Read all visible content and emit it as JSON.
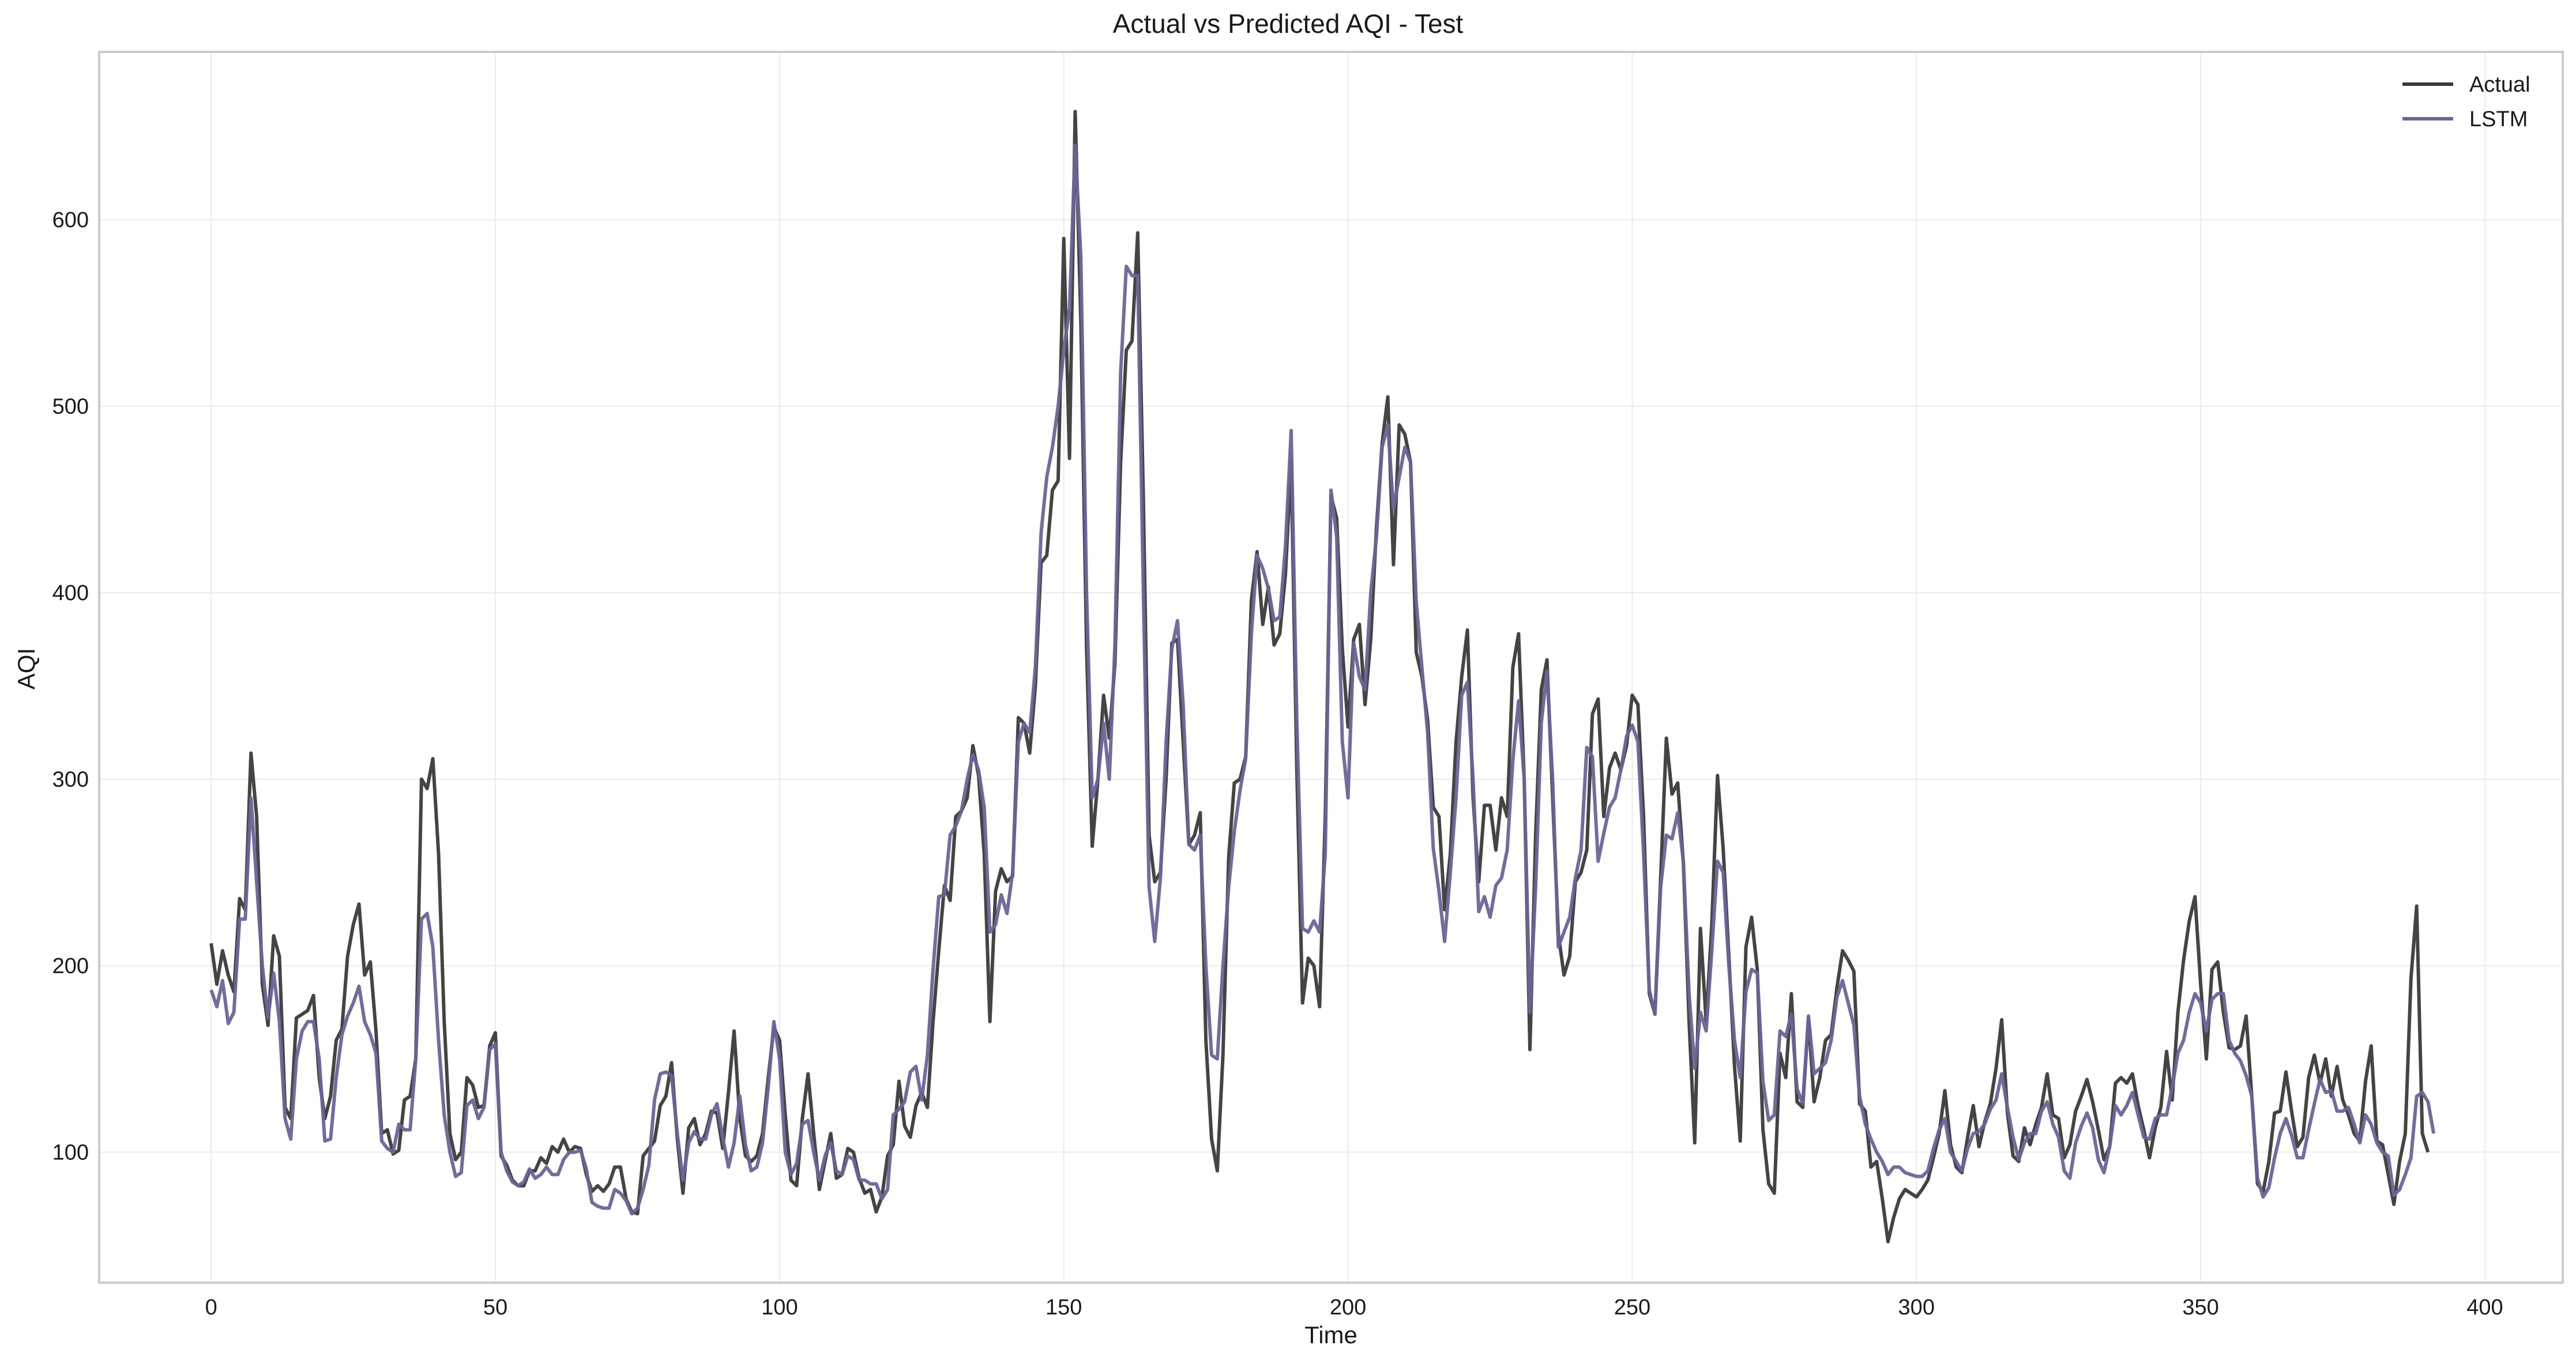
{
  "chart_data": {
    "type": "line",
    "title": "Actual vs Predicted AQI - Test",
    "xlabel": "Time",
    "ylabel": "AQI",
    "xlim": [
      -19.7,
      413.7
    ],
    "ylim": [
      30,
      690
    ],
    "xticks": [
      0,
      50,
      100,
      150,
      200,
      250,
      300,
      350,
      400
    ],
    "yticks": [
      100,
      200,
      300,
      400,
      500,
      600
    ],
    "grid": true,
    "legend_position": "top-right",
    "series": [
      {
        "name": "Actual",
        "color": "#3a3a3a",
        "values": [
          212,
          190,
          208,
          195,
          186,
          236,
          230,
          314,
          280,
          190,
          168,
          216,
          205,
          124,
          118,
          172,
          174,
          176,
          184,
          140,
          118,
          130,
          160,
          166,
          205,
          222,
          233,
          195,
          202,
          165,
          110,
          112,
          99,
          101,
          128,
          130,
          150,
          300,
          295,
          311,
          260,
          170,
          110,
          96,
          100,
          140,
          136,
          124,
          125,
          157,
          164,
          98,
          93,
          85,
          82,
          82,
          90,
          90,
          97,
          94,
          103,
          100,
          107,
          100,
          103,
          102,
          88,
          79,
          82,
          79,
          83,
          92,
          92,
          75,
          68,
          67,
          98,
          102,
          106,
          125,
          130,
          148,
          107,
          78,
          113,
          118,
          104,
          110,
          122,
          121,
          102,
          132,
          165,
          118,
          98,
          95,
          98,
          110,
          140,
          167,
          160,
          120,
          85,
          82,
          118,
          142,
          110,
          80,
          95,
          110,
          86,
          88,
          102,
          100,
          86,
          78,
          80,
          68,
          76,
          98,
          104,
          138,
          114,
          108,
          125,
          132,
          124,
          170,
          208,
          243,
          235,
          280,
          283,
          290,
          318,
          302,
          260,
          170,
          240,
          252,
          245,
          248,
          333,
          330,
          314,
          350,
          416,
          420,
          455,
          460,
          590,
          472,
          658,
          545,
          370,
          264,
          300,
          345,
          322,
          362,
          470,
          530,
          535,
          593,
          450,
          270,
          245,
          250,
          300,
          373,
          375,
          320,
          265,
          270,
          282,
          160,
          107,
          90,
          152,
          258,
          298,
          300,
          312,
          396,
          422,
          383,
          403,
          372,
          378,
          410,
          470,
          303,
          180,
          204,
          200,
          178,
          280,
          452,
          440,
          370,
          328,
          375,
          383,
          340,
          375,
          435,
          480,
          505,
          415,
          490,
          485,
          470,
          368,
          355,
          332,
          285,
          280,
          230,
          260,
          320,
          355,
          380,
          290,
          245,
          286,
          286,
          262,
          290,
          280,
          360,
          378,
          300,
          155,
          270,
          348,
          364,
          290,
          217,
          195,
          205,
          245,
          250,
          262,
          335,
          343,
          280,
          306,
          314,
          305,
          318,
          345,
          340,
          280,
          185,
          174,
          247,
          322,
          292,
          298,
          255,
          170,
          105,
          220,
          170,
          222,
          302,
          263,
          205,
          146,
          106,
          210,
          226,
          198,
          112,
          83,
          78,
          153,
          140,
          185,
          127,
          124,
          172,
          127,
          140,
          160,
          163,
          188,
          208,
          203,
          197,
          126,
          122,
          92,
          95,
          75,
          52,
          65,
          75,
          80,
          78,
          76,
          80,
          85,
          97,
          110,
          133,
          104,
          92,
          89,
          108,
          125,
          103,
          116,
          126,
          145,
          171,
          121,
          98,
          95,
          113,
          104,
          115,
          124,
          142,
          120,
          118,
          97,
          104,
          122,
          130,
          139,
          127,
          112,
          96,
          103,
          137,
          140,
          137,
          142,
          125,
          112,
          97,
          113,
          124,
          154,
          128,
          175,
          203,
          224,
          237,
          190,
          150,
          198,
          202,
          175,
          156,
          155,
          157,
          173,
          130,
          83,
          79,
          95,
          121,
          122,
          143,
          122,
          103,
          108,
          140,
          152,
          137,
          150,
          130,
          146,
          128,
          120,
          110,
          106,
          138,
          157,
          106,
          104,
          88,
          72,
          95,
          110,
          193,
          232,
          110,
          100
        ]
      },
      {
        "name": "LSTM",
        "color": "#6b6496",
        "values": [
          187,
          178,
          192,
          169,
          175,
          225,
          225,
          290,
          245,
          200,
          172,
          196,
          170,
          118,
          107,
          150,
          165,
          170,
          170,
          150,
          106,
          107,
          140,
          163,
          173,
          180,
          189,
          170,
          163,
          153,
          106,
          102,
          100,
          115,
          112,
          112,
          150,
          225,
          228,
          210,
          160,
          120,
          100,
          87,
          89,
          125,
          128,
          118,
          124,
          155,
          158,
          100,
          90,
          84,
          82,
          84,
          91,
          86,
          88,
          92,
          88,
          88,
          96,
          100,
          100,
          101,
          91,
          73,
          71,
          70,
          70,
          80,
          78,
          74,
          67,
          70,
          80,
          93,
          128,
          142,
          143,
          141,
          110,
          85,
          105,
          111,
          107,
          107,
          120,
          126,
          108,
          92,
          105,
          130,
          104,
          90,
          92,
          105,
          135,
          170,
          150,
          100,
          88,
          94,
          115,
          117,
          100,
          85,
          98,
          105,
          90,
          88,
          98,
          96,
          85,
          85,
          83,
          83,
          75,
          80,
          120,
          123,
          127,
          143,
          146,
          128,
          152,
          198,
          237,
          238,
          270,
          275,
          283,
          300,
          313,
          305,
          285,
          218,
          222,
          238,
          228,
          250,
          320,
          330,
          325,
          360,
          432,
          462,
          478,
          500,
          530,
          552,
          640,
          580,
          400,
          290,
          300,
          330,
          300,
          372,
          518,
          575,
          570,
          570,
          400,
          242,
          213,
          247,
          320,
          370,
          385,
          340,
          265,
          262,
          270,
          200,
          152,
          150,
          200,
          242,
          272,
          294,
          311,
          378,
          420,
          413,
          402,
          385,
          387,
          425,
          487,
          330,
          220,
          218,
          224,
          218,
          260,
          455,
          430,
          320,
          290,
          373,
          355,
          348,
          400,
          430,
          478,
          490,
          445,
          462,
          478,
          470,
          395,
          360,
          325,
          263,
          240,
          213,
          250,
          290,
          345,
          352,
          300,
          229,
          237,
          226,
          243,
          247,
          262,
          310,
          342,
          300,
          175,
          242,
          330,
          358,
          300,
          210,
          218,
          226,
          247,
          262,
          317,
          312,
          256,
          271,
          285,
          290,
          305,
          323,
          329,
          320,
          260,
          187,
          174,
          242,
          270,
          268,
          282,
          256,
          185,
          145,
          175,
          165,
          208,
          256,
          250,
          200,
          160,
          140,
          186,
          198,
          196,
          138,
          117,
          120,
          165,
          162,
          174,
          134,
          126,
          173,
          142,
          145,
          148,
          160,
          183,
          192,
          180,
          168,
          130,
          115,
          107,
          100,
          95,
          88,
          92,
          92,
          89,
          88,
          87,
          87,
          90,
          102,
          112,
          118,
          100,
          95,
          90,
          102,
          110,
          111,
          115,
          123,
          128,
          142,
          124,
          108,
          96,
          105,
          110,
          110,
          122,
          127,
          115,
          108,
          90,
          86,
          105,
          114,
          121,
          113,
          96,
          89,
          103,
          125,
          120,
          125,
          132,
          120,
          108,
          107,
          118,
          120,
          120,
          135,
          153,
          160,
          175,
          185,
          180,
          165,
          182,
          185,
          185,
          160,
          153,
          149,
          141,
          130,
          86,
          76,
          81,
          97,
          110,
          118,
          109,
          97,
          97,
          112,
          126,
          139,
          132,
          133,
          122,
          122,
          124,
          115,
          105,
          120,
          115,
          105,
          100,
          98,
          77,
          80,
          88,
          97,
          130,
          132,
          127,
          110
        ]
      }
    ]
  }
}
